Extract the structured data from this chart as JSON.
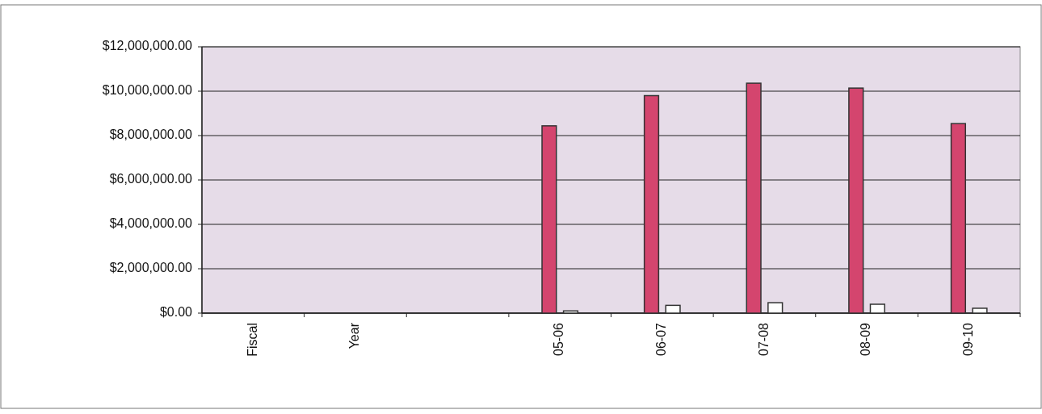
{
  "chart_data": {
    "type": "bar",
    "categories": [
      "Fiscal",
      "Year",
      null,
      "05-06",
      "06-07",
      "07-08",
      "08-09",
      "09-10"
    ],
    "series": [
      {
        "color": "#d4456e",
        "values": [
          null,
          null,
          null,
          8440000,
          9800000,
          10360000,
          10140000,
          8540000
        ]
      },
      {
        "color": "#ffffff",
        "values": [
          null,
          null,
          null,
          100000,
          350000,
          470000,
          400000,
          220000
        ]
      }
    ],
    "ylim": [
      0,
      12000000
    ],
    "yticks": [
      {
        "value": 0,
        "label": "$0.00"
      },
      {
        "value": 2000000,
        "label": "$2,000,000.00"
      },
      {
        "value": 4000000,
        "label": "$4,000,000.00"
      },
      {
        "value": 6000000,
        "label": "$6,000,000.00"
      },
      {
        "value": 8000000,
        "label": "$8,000,000.00"
      },
      {
        "value": 10000000,
        "label": "$10,000,000.00"
      },
      {
        "value": 12000000,
        "label": "$12,000,000.00"
      }
    ],
    "grid": "y"
  }
}
